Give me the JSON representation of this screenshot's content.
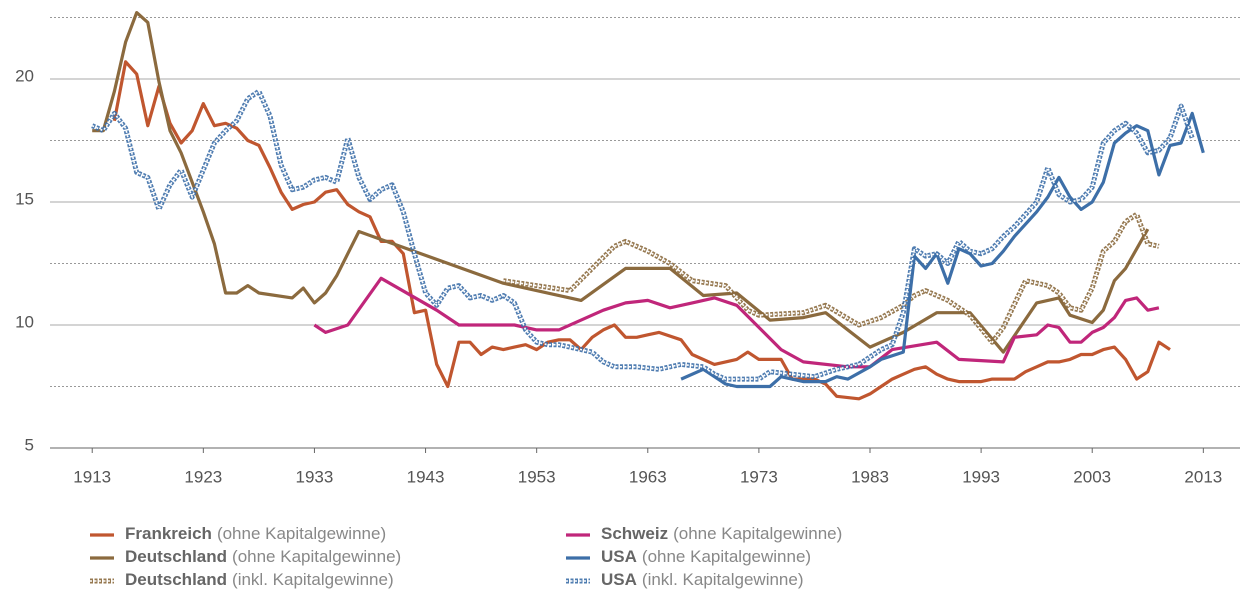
{
  "chart_data": {
    "type": "line",
    "xlim": [
      1909.2,
      2016.3
    ],
    "ylim": [
      5,
      23.2
    ],
    "xticks": [
      1913,
      1923,
      1933,
      1943,
      1953,
      1963,
      1973,
      1983,
      1993,
      2003,
      2013
    ],
    "yticks": [
      5,
      10,
      15,
      20
    ],
    "minor_yticks": [
      7.5,
      12.5,
      17.5,
      22.5
    ],
    "grid": true,
    "series": [
      {
        "name": "Frankreich",
        "qualifier": "(ohne Kapitalgewinne)",
        "color": "#c0562f",
        "style": "solid",
        "x": [
          1915,
          1916,
          1917,
          1918,
          1919,
          1920,
          1921,
          1922,
          1923,
          1924,
          1925,
          1926,
          1927,
          1928,
          1929,
          1930,
          1931,
          1932,
          1933,
          1934,
          1935,
          1936,
          1937,
          1938,
          1939,
          1940,
          1941,
          1942,
          1943,
          1944,
          1945,
          1946,
          1947,
          1948,
          1949,
          1950,
          1951,
          1952,
          1953,
          1954,
          1955,
          1956,
          1957,
          1958,
          1959,
          1960,
          1961,
          1962,
          1963,
          1964,
          1966,
          1967,
          1969,
          1970,
          1971,
          1972,
          1973,
          1975,
          1976,
          1978,
          1979,
          1980,
          1982,
          1983,
          1984,
          1985,
          1986,
          1987,
          1988,
          1989,
          1990,
          1991,
          1993,
          1994,
          1996,
          1997,
          1998,
          1999,
          2000,
          2001,
          2002,
          2003,
          2004,
          2005,
          2006,
          2007,
          2008,
          2009,
          2010
        ],
        "values": [
          18.3,
          20.7,
          20.2,
          18.1,
          19.7,
          18.2,
          17.4,
          17.9,
          19.0,
          18.1,
          18.2,
          18.0,
          17.5,
          17.3,
          16.4,
          15.4,
          14.7,
          14.9,
          15.0,
          15.4,
          15.5,
          14.9,
          14.6,
          14.4,
          13.4,
          13.4,
          12.9,
          10.5,
          10.6,
          8.4,
          7.5,
          9.3,
          9.3,
          8.8,
          9.1,
          9.0,
          9.1,
          9.2,
          9.0,
          9.3,
          9.4,
          9.4,
          9.0,
          9.5,
          9.8,
          10.0,
          9.5,
          9.5,
          9.6,
          9.7,
          9.4,
          8.8,
          8.4,
          8.5,
          8.6,
          8.9,
          8.6,
          8.6,
          7.8,
          7.8,
          7.6,
          7.1,
          7.0,
          7.2,
          7.5,
          7.8,
          8.0,
          8.2,
          8.3,
          8.0,
          7.8,
          7.7,
          7.7,
          7.8,
          7.8,
          8.1,
          8.3,
          8.5,
          8.5,
          8.6,
          8.8,
          8.8,
          9.0,
          9.1,
          8.6,
          7.8,
          8.1,
          9.3,
          9.0
        ]
      },
      {
        "name": "Deutschland",
        "qualifier": "(ohne Kapitalgewinne)",
        "color": "#8b6a3e",
        "style": "solid",
        "x": [
          1913,
          1914,
          1915,
          1916,
          1917,
          1918,
          1919,
          1920,
          1921,
          1922,
          1923,
          1924,
          1925,
          1926,
          1927,
          1928,
          1931,
          1932,
          1933,
          1934,
          1935,
          1937,
          1950,
          1957,
          1961,
          1965,
          1968,
          1971,
          1974,
          1977,
          1979,
          1983,
          1986,
          1989,
          1992,
          1995,
          1998,
          2000,
          2001,
          2003,
          2004,
          2005,
          2006,
          2008
        ],
        "values": [
          17.9,
          17.9,
          19.5,
          21.5,
          22.7,
          22.3,
          19.9,
          17.9,
          17.0,
          15.8,
          14.6,
          13.3,
          11.3,
          11.3,
          11.6,
          11.3,
          11.1,
          11.5,
          10.9,
          11.3,
          12.0,
          13.8,
          11.7,
          11.0,
          12.3,
          12.3,
          11.2,
          11.3,
          10.2,
          10.3,
          10.5,
          9.1,
          9.7,
          10.5,
          10.5,
          8.9,
          10.9,
          11.1,
          10.4,
          10.1,
          10.6,
          11.8,
          12.3,
          13.9
        ]
      },
      {
        "name": "Deutschland",
        "qualifier": "(inkl. Kapitalgewinne)",
        "color": "#8b6a3e",
        "style": "dotted",
        "x": [
          1950,
          1956,
          1958,
          1960,
          1961,
          1963,
          1965,
          1967,
          1970,
          1972,
          1973,
          1977,
          1979,
          1982,
          1984,
          1986,
          1987,
          1988,
          1990,
          1992,
          1994,
          1995,
          1997,
          1999,
          2000,
          2001,
          2002,
          2003,
          2004,
          2005,
          2006,
          2007,
          2008,
          2009
        ],
        "values": [
          11.8,
          11.4,
          12.3,
          13.2,
          13.4,
          13.0,
          12.5,
          11.8,
          11.6,
          10.6,
          10.4,
          10.5,
          10.8,
          10.0,
          10.3,
          10.8,
          11.2,
          11.4,
          11.0,
          10.4,
          9.3,
          9.9,
          11.8,
          11.6,
          11.3,
          10.7,
          10.6,
          11.5,
          13.0,
          13.4,
          14.2,
          14.5,
          13.3,
          13.2
        ]
      },
      {
        "name": "Schweiz",
        "qualifier": "(ohne Kapitalgewinne)",
        "color": "#c0267a",
        "style": "solid",
        "x": [
          1933,
          1934,
          1936,
          1939,
          1944,
          1946,
          1951,
          1953,
          1955,
          1959,
          1961,
          1963,
          1965,
          1967,
          1969,
          1971,
          1975,
          1977,
          1981,
          1983,
          1985,
          1989,
          1991,
          1995,
          1996,
          1998,
          1999,
          2000,
          2001,
          2002,
          2003,
          2004,
          2005,
          2006,
          2007,
          2008,
          2009
        ],
        "values": [
          10.0,
          9.7,
          10.0,
          11.9,
          10.6,
          10.0,
          10.0,
          9.8,
          9.8,
          10.6,
          10.9,
          11.0,
          10.7,
          10.9,
          11.1,
          10.8,
          9.0,
          8.5,
          8.3,
          8.3,
          9.0,
          9.3,
          8.6,
          8.5,
          9.5,
          9.6,
          10.0,
          9.9,
          9.3,
          9.3,
          9.7,
          9.9,
          10.3,
          11.0,
          11.1,
          10.6,
          10.7
        ]
      },
      {
        "name": "USA",
        "qualifier": "(ohne Kapitalgewinne)",
        "color": "#3d6fa8",
        "style": "solid",
        "x": [
          1966,
          1968,
          1970,
          1971,
          1974,
          1975,
          1977,
          1979,
          1980,
          1981,
          1983,
          1984,
          1986,
          1987,
          1988,
          1989,
          1990,
          1991,
          1992,
          1993,
          1994,
          1995,
          1996,
          1997,
          1998,
          1999,
          2000,
          2001,
          2002,
          2003,
          2004,
          2005,
          2006,
          2007,
          2008,
          2009,
          2010,
          2011,
          2012,
          2013
        ],
        "values": [
          7.8,
          8.2,
          7.6,
          7.5,
          7.5,
          7.9,
          7.7,
          7.7,
          7.9,
          7.8,
          8.3,
          8.6,
          8.9,
          12.8,
          12.3,
          12.9,
          11.7,
          13.1,
          12.9,
          12.4,
          12.5,
          13.0,
          13.6,
          14.1,
          14.6,
          15.2,
          16.0,
          15.2,
          14.7,
          15.0,
          15.8,
          17.4,
          17.8,
          18.1,
          17.9,
          16.1,
          17.3,
          17.4,
          18.6,
          17.0
        ]
      },
      {
        "name": "USA",
        "qualifier": "(inkl. Kapitalgewinne)",
        "color": "#3d6fa8",
        "style": "dotted",
        "x": [
          1913,
          1914,
          1915,
          1916,
          1917,
          1918,
          1919,
          1920,
          1921,
          1922,
          1923,
          1924,
          1925,
          1926,
          1927,
          1928,
          1929,
          1930,
          1931,
          1932,
          1933,
          1934,
          1935,
          1936,
          1937,
          1938,
          1939,
          1940,
          1941,
          1942,
          1943,
          1944,
          1945,
          1946,
          1947,
          1948,
          1949,
          1950,
          1951,
          1952,
          1953,
          1954,
          1955,
          1956,
          1957,
          1958,
          1959,
          1960,
          1962,
          1964,
          1965,
          1966,
          1968,
          1969,
          1970,
          1973,
          1974,
          1976,
          1978,
          1980,
          1982,
          1983,
          1984,
          1985,
          1986,
          1987,
          1988,
          1989,
          1990,
          1991,
          1992,
          1993,
          1994,
          1995,
          1996,
          1997,
          1998,
          1999,
          2000,
          2001,
          2002,
          2003,
          2004,
          2005,
          2006,
          2007,
          2008,
          2009,
          2010,
          2011,
          2012
        ],
        "values": [
          18.1,
          17.9,
          18.6,
          18.0,
          16.2,
          16.0,
          14.7,
          15.7,
          16.3,
          15.2,
          16.3,
          17.4,
          17.9,
          18.3,
          19.2,
          19.5,
          18.5,
          16.5,
          15.5,
          15.6,
          15.9,
          16.0,
          15.8,
          17.6,
          16.0,
          15.1,
          15.5,
          15.7,
          14.6,
          12.9,
          11.3,
          10.8,
          11.5,
          11.6,
          11.1,
          11.2,
          11.0,
          11.2,
          10.9,
          9.8,
          9.3,
          9.2,
          9.2,
          9.1,
          9.0,
          8.9,
          8.5,
          8.3,
          8.3,
          8.2,
          8.3,
          8.4,
          8.3,
          8.0,
          7.8,
          7.8,
          8.1,
          8.0,
          7.9,
          8.2,
          8.4,
          8.7,
          9.0,
          9.2,
          10.5,
          13.1,
          12.8,
          12.9,
          12.5,
          13.4,
          13.0,
          12.9,
          13.1,
          13.6,
          14.0,
          14.5,
          15.0,
          16.4,
          15.3,
          15.0,
          15.1,
          15.6,
          17.4,
          17.9,
          18.2,
          17.8,
          17.0,
          17.1,
          17.6,
          18.9,
          17.6
        ]
      }
    ]
  }
}
